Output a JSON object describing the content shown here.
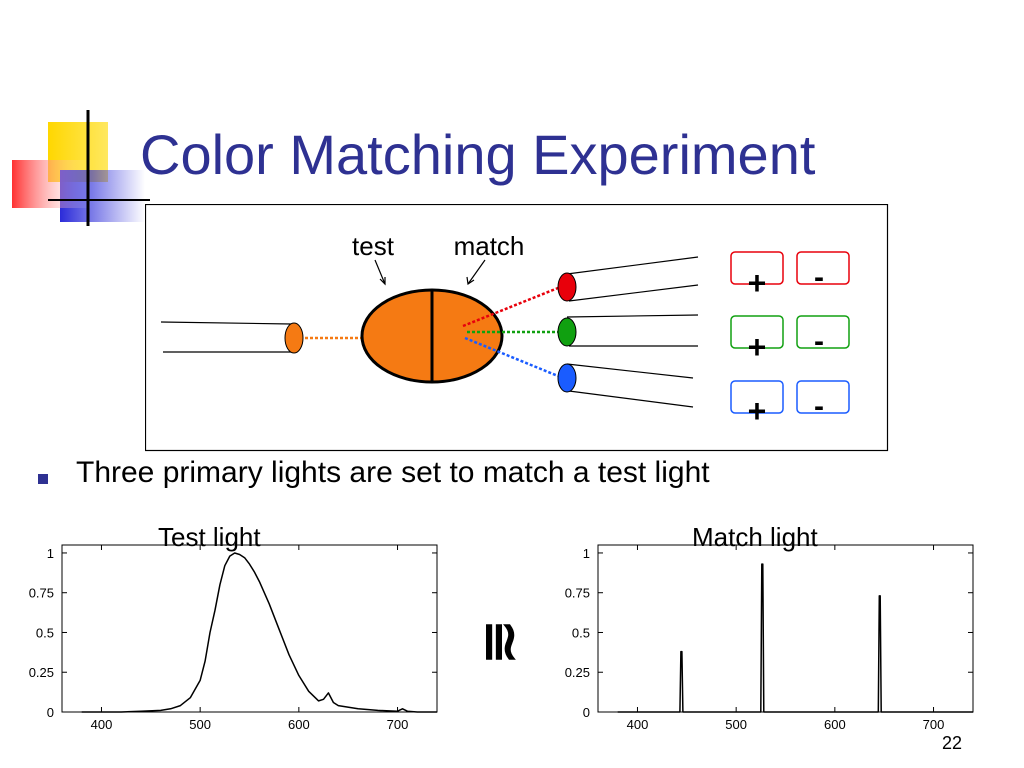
{
  "slide": {
    "title": "Color Matching Experiment",
    "bullet": "Three primary lights are set to match a test light",
    "page_number": "22",
    "approx_symbol": "≅"
  },
  "diagram": {
    "label_test": "test",
    "label_match": "match",
    "test_color": "#f57a13",
    "primaries": [
      {
        "name": "red",
        "color": "#e8000b",
        "plus": "+",
        "minus": "-"
      },
      {
        "name": "green",
        "color": "#10a010",
        "plus": "+",
        "minus": "-"
      },
      {
        "name": "blue",
        "color": "#1a5cff",
        "plus": "+",
        "minus": "-"
      }
    ]
  },
  "colors": {
    "title": "#2e3192",
    "deco_yellow": "#ffd700",
    "deco_red": "#ff4a4a",
    "deco_blue": "#2b2bd9"
  },
  "chart_data": [
    {
      "type": "line",
      "title": "Test light",
      "xlim": [
        360,
        740
      ],
      "ylim": [
        0,
        1.05
      ],
      "xticks": [
        400,
        500,
        600,
        700
      ],
      "yticks": [
        0,
        0.25,
        0.5,
        0.75,
        1
      ],
      "ytick_labels": [
        "0",
        "0.25",
        "0.5",
        "0.75",
        "1"
      ],
      "series": [
        {
          "x": [
            380,
            400,
            420,
            440,
            460,
            470,
            480,
            490,
            500,
            505,
            510,
            515,
            520,
            525,
            530,
            535,
            540,
            545,
            550,
            555,
            560,
            570,
            580,
            590,
            600,
            610,
            620,
            625,
            630,
            635,
            640,
            660,
            680,
            700,
            705,
            710,
            720,
            740
          ],
          "y": [
            0.0,
            0.0,
            0.0,
            0.005,
            0.01,
            0.02,
            0.04,
            0.09,
            0.2,
            0.32,
            0.5,
            0.64,
            0.8,
            0.92,
            0.98,
            1.0,
            0.99,
            0.97,
            0.93,
            0.88,
            0.82,
            0.68,
            0.52,
            0.36,
            0.23,
            0.13,
            0.07,
            0.08,
            0.12,
            0.06,
            0.04,
            0.02,
            0.01,
            0.005,
            0.02,
            0.005,
            0.0,
            0.0
          ]
        }
      ]
    },
    {
      "type": "line",
      "title": "Match light",
      "xlim": [
        360,
        740
      ],
      "ylim": [
        0,
        1.05
      ],
      "xticks": [
        400,
        500,
        600,
        700
      ],
      "yticks": [
        0,
        0.25,
        0.5,
        0.75,
        1
      ],
      "ytick_labels": [
        "0",
        "0.25",
        "0.5",
        "0.75",
        "1"
      ],
      "series": [
        {
          "x": [
            380,
            443,
            444,
            445,
            446,
            525,
            526,
            527,
            528,
            644,
            645,
            646,
            647,
            740
          ],
          "y": [
            0.0,
            0.0,
            0.38,
            0.38,
            0.0,
            0.0,
            0.93,
            0.93,
            0.0,
            0.0,
            0.73,
            0.73,
            0.0,
            0.0
          ]
        }
      ]
    }
  ]
}
